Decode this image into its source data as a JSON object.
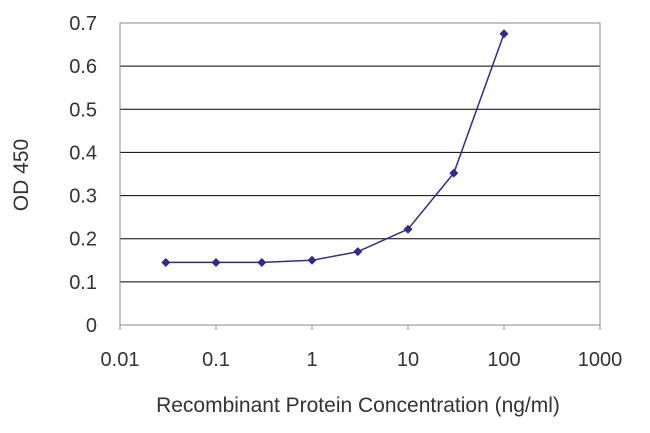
{
  "chart_data": {
    "type": "line",
    "title": "",
    "xlabel": "Recombinant Protein Concentration (ng/ml)",
    "ylabel": "OD 450",
    "x_scale": "log",
    "xlim": [
      0.01,
      1000
    ],
    "ylim": [
      0,
      0.7
    ],
    "x_ticks": [
      "0.01",
      "0.1",
      "1",
      "10",
      "100",
      "1000"
    ],
    "y_ticks": [
      "0",
      "0.1",
      "0.2",
      "0.3",
      "0.4",
      "0.5",
      "0.6",
      "0.7"
    ],
    "grid": true,
    "legend": "none",
    "colors": {
      "series": "#2d2d86",
      "grid": "#000000",
      "plot_background": "#ffffff"
    },
    "series": [
      {
        "x": [
          0.03,
          0.1,
          0.3,
          1,
          3,
          10,
          30,
          100
        ],
        "y": [
          0.145,
          0.145,
          0.145,
          0.15,
          0.17,
          0.222,
          0.352,
          0.675
        ]
      }
    ]
  }
}
